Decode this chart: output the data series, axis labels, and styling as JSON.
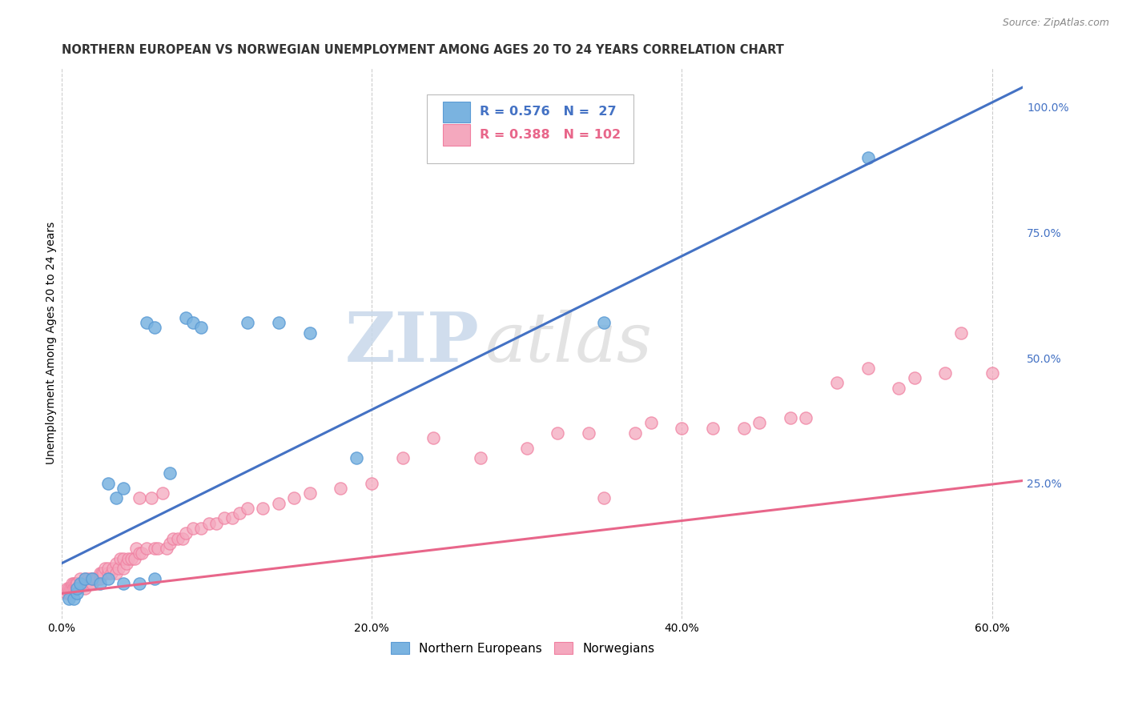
{
  "title": "NORTHERN EUROPEAN VS NORWEGIAN UNEMPLOYMENT AMONG AGES 20 TO 24 YEARS CORRELATION CHART",
  "source": "Source: ZipAtlas.com",
  "ylabel": "Unemployment Among Ages 20 to 24 years",
  "xlim": [
    0.0,
    0.62
  ],
  "ylim": [
    -0.02,
    1.08
  ],
  "xtick_labels": [
    "0.0%",
    "20.0%",
    "40.0%",
    "60.0%"
  ],
  "xtick_vals": [
    0.0,
    0.2,
    0.4,
    0.6
  ],
  "ytick_right_labels": [
    "100.0%",
    "75.0%",
    "50.0%",
    "25.0%"
  ],
  "ytick_right_vals": [
    1.0,
    0.75,
    0.5,
    0.25
  ],
  "blue_R": 0.576,
  "blue_N": 27,
  "pink_R": 0.388,
  "pink_N": 102,
  "blue_color": "#7AB3E0",
  "pink_color": "#F4A8BE",
  "blue_edge_color": "#5B9BD5",
  "pink_edge_color": "#F07FA0",
  "blue_line_color": "#4472C4",
  "pink_line_color": "#E8668A",
  "legend_label_blue": "Northern Europeans",
  "legend_label_pink": "Norwegians",
  "watermark_zip": "ZIP",
  "watermark_atlas": "atlas",
  "blue_scatter_x": [
    0.005,
    0.008,
    0.01,
    0.01,
    0.012,
    0.015,
    0.02,
    0.025,
    0.03,
    0.03,
    0.035,
    0.04,
    0.04,
    0.05,
    0.06,
    0.07,
    0.08,
    0.085,
    0.09,
    0.055,
    0.06,
    0.12,
    0.14,
    0.16,
    0.19,
    0.35,
    0.52
  ],
  "blue_scatter_y": [
    0.02,
    0.02,
    0.03,
    0.04,
    0.05,
    0.06,
    0.06,
    0.05,
    0.06,
    0.25,
    0.22,
    0.24,
    0.05,
    0.05,
    0.06,
    0.27,
    0.58,
    0.57,
    0.56,
    0.57,
    0.56,
    0.57,
    0.57,
    0.55,
    0.3,
    0.57,
    0.9
  ],
  "pink_scatter_x": [
    0.003,
    0.004,
    0.005,
    0.005,
    0.006,
    0.007,
    0.007,
    0.008,
    0.008,
    0.009,
    0.009,
    0.01,
    0.01,
    0.01,
    0.01,
    0.01,
    0.012,
    0.012,
    0.013,
    0.014,
    0.015,
    0.015,
    0.015,
    0.016,
    0.017,
    0.018,
    0.019,
    0.02,
    0.02,
    0.02,
    0.022,
    0.023,
    0.025,
    0.025,
    0.026,
    0.027,
    0.028,
    0.03,
    0.03,
    0.032,
    0.033,
    0.035,
    0.035,
    0.037,
    0.038,
    0.04,
    0.04,
    0.042,
    0.043,
    0.045,
    0.047,
    0.048,
    0.05,
    0.05,
    0.052,
    0.055,
    0.058,
    0.06,
    0.062,
    0.065,
    0.068,
    0.07,
    0.072,
    0.075,
    0.078,
    0.08,
    0.085,
    0.09,
    0.095,
    0.1,
    0.105,
    0.11,
    0.115,
    0.12,
    0.13,
    0.14,
    0.15,
    0.16,
    0.18,
    0.2,
    0.22,
    0.24,
    0.27,
    0.3,
    0.32,
    0.34,
    0.35,
    0.37,
    0.38,
    0.4,
    0.42,
    0.44,
    0.45,
    0.47,
    0.48,
    0.5,
    0.52,
    0.54,
    0.55,
    0.57,
    0.58,
    0.6
  ],
  "pink_scatter_y": [
    0.03,
    0.04,
    0.03,
    0.04,
    0.04,
    0.04,
    0.05,
    0.05,
    0.04,
    0.04,
    0.05,
    0.04,
    0.05,
    0.04,
    0.05,
    0.05,
    0.05,
    0.06,
    0.05,
    0.05,
    0.05,
    0.06,
    0.04,
    0.05,
    0.06,
    0.05,
    0.06,
    0.05,
    0.06,
    0.05,
    0.06,
    0.06,
    0.06,
    0.07,
    0.07,
    0.07,
    0.08,
    0.07,
    0.08,
    0.07,
    0.08,
    0.09,
    0.07,
    0.08,
    0.1,
    0.08,
    0.1,
    0.09,
    0.1,
    0.1,
    0.1,
    0.12,
    0.11,
    0.22,
    0.11,
    0.12,
    0.22,
    0.12,
    0.12,
    0.23,
    0.12,
    0.13,
    0.14,
    0.14,
    0.14,
    0.15,
    0.16,
    0.16,
    0.17,
    0.17,
    0.18,
    0.18,
    0.19,
    0.2,
    0.2,
    0.21,
    0.22,
    0.23,
    0.24,
    0.25,
    0.3,
    0.34,
    0.3,
    0.32,
    0.35,
    0.35,
    0.22,
    0.35,
    0.37,
    0.36,
    0.36,
    0.36,
    0.37,
    0.38,
    0.38,
    0.45,
    0.48,
    0.44,
    0.46,
    0.47,
    0.55,
    0.47
  ],
  "blue_line_x0": 0.0,
  "blue_line_y0": 0.09,
  "blue_line_x1": 0.62,
  "blue_line_y1": 1.04,
  "pink_line_x0": 0.0,
  "pink_line_y0": 0.03,
  "pink_line_x1": 0.62,
  "pink_line_y1": 0.255,
  "title_fontsize": 10.5,
  "source_fontsize": 9,
  "axis_label_fontsize": 10,
  "tick_fontsize": 10,
  "scatter_size": 120,
  "background_color": "#FFFFFF",
  "grid_color": "#CCCCCC"
}
